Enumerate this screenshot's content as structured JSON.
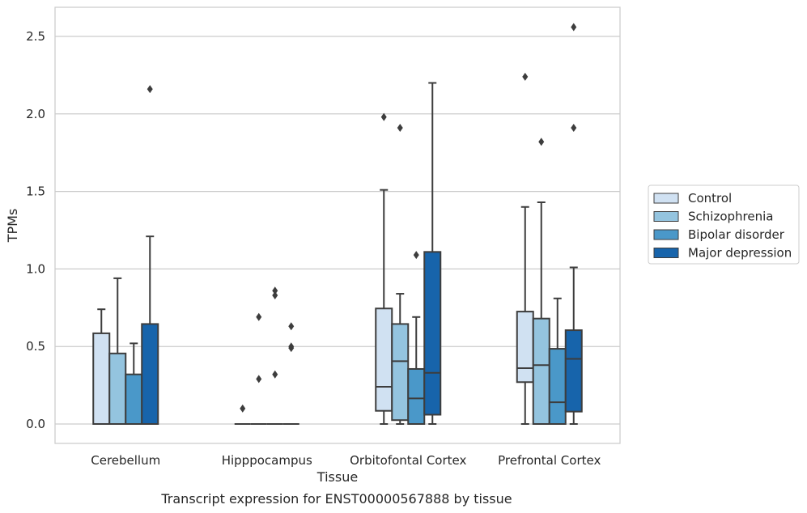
{
  "chart_data": {
    "type": "box",
    "xlabel": "Tissue",
    "ylabel": "TPMs",
    "caption": "Transcript expression for ENST00000567888 by tissue",
    "ylim": [
      -0.12,
      2.69
    ],
    "yticks": [
      0.0,
      0.5,
      1.0,
      1.5,
      2.0,
      2.5
    ],
    "ytick_labels": [
      "0.0",
      "0.5",
      "1.0",
      "1.5",
      "2.0",
      "2.5"
    ],
    "grid": "horizontal",
    "legend_position": "right",
    "categories": [
      "Cerebellum",
      "Hipppocampus",
      "Orbitofontal Cortex",
      "Prefrontal Cortex"
    ],
    "series": [
      {
        "name": "Control",
        "color": "#d0e1f2",
        "boxes": [
          {
            "whislo": 0.0,
            "q1": 0.0,
            "med": 0.0,
            "q3": 0.585,
            "whishi": 0.74,
            "fliers": []
          },
          {
            "whislo": 0.0,
            "q1": 0.0,
            "med": 0.0,
            "q3": 0.0,
            "whishi": 0.0,
            "fliers": [
              0.1
            ]
          },
          {
            "whislo": 0.0,
            "q1": 0.085,
            "med": 0.24,
            "q3": 0.745,
            "whishi": 1.51,
            "fliers": [
              1.98
            ]
          },
          {
            "whislo": 0.0,
            "q1": 0.27,
            "med": 0.36,
            "q3": 0.725,
            "whishi": 1.4,
            "fliers": [
              2.24
            ]
          }
        ]
      },
      {
        "name": "Schizophrenia",
        "color": "#94c4df",
        "boxes": [
          {
            "whislo": 0.0,
            "q1": 0.0,
            "med": 0.0,
            "q3": 0.455,
            "whishi": 0.94,
            "fliers": []
          },
          {
            "whislo": 0.0,
            "q1": 0.0,
            "med": 0.0,
            "q3": 0.0,
            "whishi": 0.0,
            "fliers": [
              0.29,
              0.69
            ]
          },
          {
            "whislo": 0.0,
            "q1": 0.025,
            "med": 0.405,
            "q3": 0.645,
            "whishi": 0.84,
            "fliers": [
              1.91
            ]
          },
          {
            "whislo": 0.0,
            "q1": 0.0,
            "med": 0.38,
            "q3": 0.68,
            "whishi": 1.43,
            "fliers": [
              1.82
            ]
          }
        ]
      },
      {
        "name": "Bipolar disorder",
        "color": "#4a98c9",
        "boxes": [
          {
            "whislo": 0.0,
            "q1": 0.0,
            "med": 0.0,
            "q3": 0.32,
            "whishi": 0.52,
            "fliers": []
          },
          {
            "whislo": 0.0,
            "q1": 0.0,
            "med": 0.0,
            "q3": 0.0,
            "whishi": 0.0,
            "fliers": [
              0.32,
              0.83,
              0.86
            ]
          },
          {
            "whislo": 0.0,
            "q1": 0.0,
            "med": 0.165,
            "q3": 0.355,
            "whishi": 0.69,
            "fliers": [
              1.09
            ]
          },
          {
            "whislo": 0.0,
            "q1": 0.0,
            "med": 0.14,
            "q3": 0.485,
            "whishi": 0.81,
            "fliers": []
          }
        ]
      },
      {
        "name": "Major depression",
        "color": "#1764ab",
        "boxes": [
          {
            "whislo": 0.0,
            "q1": 0.0,
            "med": 0.0,
            "q3": 0.645,
            "whishi": 1.21,
            "fliers": [
              2.16
            ]
          },
          {
            "whislo": 0.0,
            "q1": 0.0,
            "med": 0.0,
            "q3": 0.0,
            "whishi": 0.0,
            "fliers": [
              0.49,
              0.5,
              0.63
            ]
          },
          {
            "whislo": 0.0,
            "q1": 0.06,
            "med": 0.33,
            "q3": 1.11,
            "whishi": 2.2,
            "fliers": []
          },
          {
            "whislo": 0.0,
            "q1": 0.08,
            "med": 0.42,
            "q3": 0.605,
            "whishi": 1.01,
            "fliers": [
              1.91,
              2.56
            ]
          }
        ]
      }
    ]
  }
}
